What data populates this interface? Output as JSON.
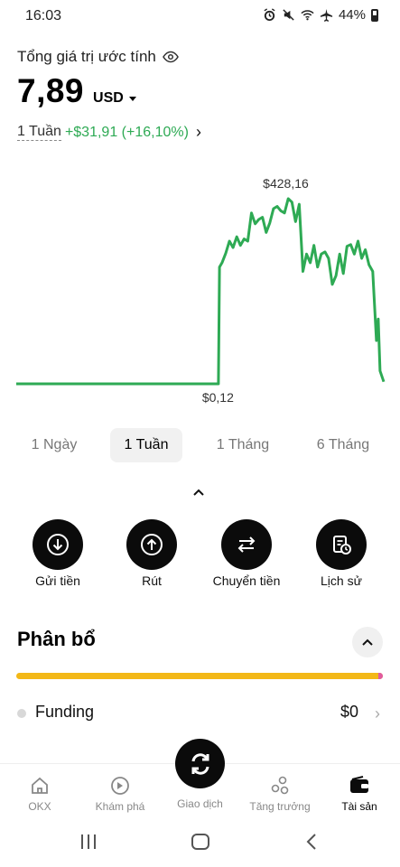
{
  "status": {
    "time": "16:03",
    "battery": "44%"
  },
  "header": {
    "estimate_label": "Tổng giá trị ước tính",
    "balance": "7,89",
    "currency": "USD",
    "period": "1 Tuần",
    "change": "+$31,91 (+16,10%)"
  },
  "chart_data": {
    "type": "line",
    "x": [
      0,
      5,
      10,
      15,
      20,
      25,
      30,
      35,
      40,
      45,
      50,
      55,
      55.3,
      56,
      57,
      58,
      59,
      60,
      61,
      62,
      63,
      64,
      65,
      66,
      67,
      68,
      69,
      70,
      71,
      72,
      73,
      74,
      75,
      76,
      77,
      78,
      79,
      80,
      81,
      82,
      83,
      84,
      85,
      86,
      87,
      88,
      89,
      90,
      91,
      92,
      93,
      94,
      95,
      96,
      97,
      98,
      98.5,
      99,
      100
    ],
    "values": [
      0.12,
      0.12,
      0.12,
      0.12,
      0.12,
      0.12,
      0.12,
      0.12,
      0.12,
      0.12,
      0.12,
      0.12,
      270,
      280,
      302,
      330,
      315,
      340,
      320,
      335,
      330,
      395,
      370,
      380,
      385,
      350,
      372,
      405,
      410,
      400,
      395,
      428,
      420,
      375,
      415,
      260,
      300,
      280,
      320,
      270,
      300,
      305,
      290,
      230,
      250,
      300,
      255,
      318,
      322,
      300,
      330,
      290,
      310,
      275,
      260,
      100,
      150,
      30,
      5
    ],
    "annotations": [
      "$428,16",
      "$0,12"
    ],
    "color": "#2eaa54"
  },
  "ranges": [
    "1 Ngày",
    "1 Tuần",
    "1 Tháng",
    "6 Tháng"
  ],
  "active_range": "1 Tuần",
  "actions": [
    {
      "label": "Gửi tiền",
      "icon": "deposit-icon"
    },
    {
      "label": "Rút",
      "icon": "withdraw-icon"
    },
    {
      "label": "Chuyển tiền",
      "icon": "transfer-icon"
    },
    {
      "label": "Lịch sử",
      "icon": "history-icon"
    }
  ],
  "allocation": {
    "title": "Phân bổ",
    "rows": [
      {
        "name": "Funding",
        "amount": "$0"
      }
    ]
  },
  "tabs": [
    {
      "label": "OKX",
      "icon": "home-icon"
    },
    {
      "label": "Khám phá",
      "icon": "explore-icon"
    },
    {
      "label": "Giao dịch",
      "icon": "trade-icon"
    },
    {
      "label": "Tăng trưởng",
      "icon": "growth-icon"
    },
    {
      "label": "Tài sản",
      "icon": "wallet-icon"
    }
  ],
  "colors": {
    "accent_green": "#2eaa54",
    "allocation_bar": "#f3b817",
    "allocation_bar_end": "#e05aa0"
  }
}
